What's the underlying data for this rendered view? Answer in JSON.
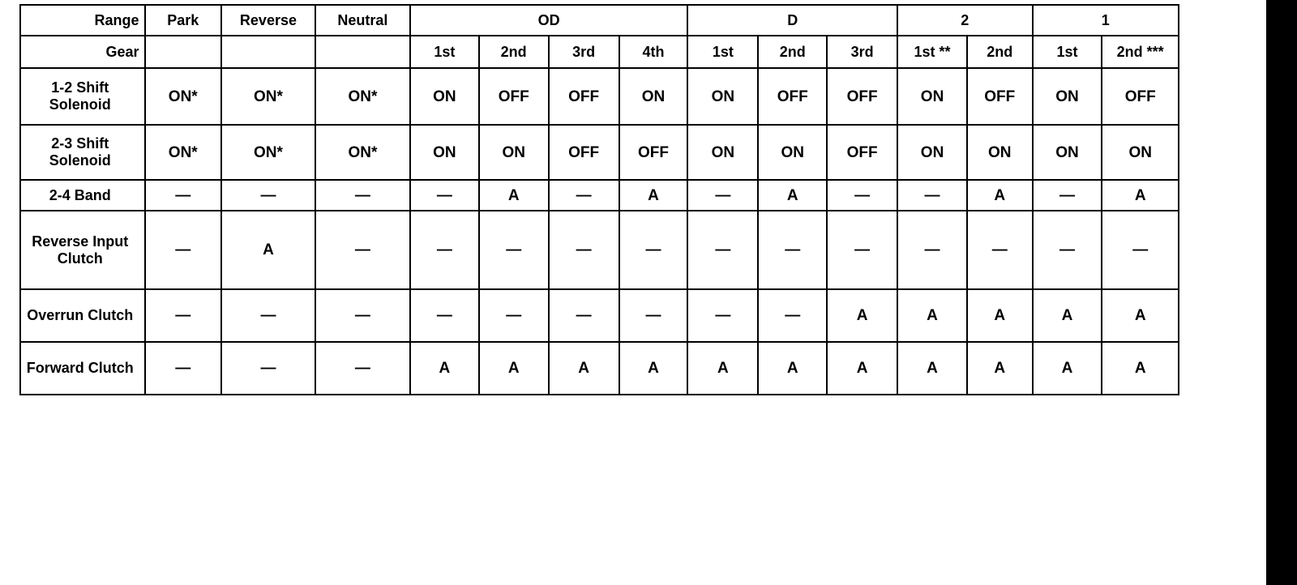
{
  "header": {
    "range_label": "Range",
    "gear_label": "Gear",
    "ranges": [
      {
        "label": "Park",
        "span": 1
      },
      {
        "label": "Reverse",
        "span": 1
      },
      {
        "label": "Neutral",
        "span": 1
      },
      {
        "label": "OD",
        "span": 4
      },
      {
        "label": "D",
        "span": 3
      },
      {
        "label": "2",
        "span": 2
      },
      {
        "label": "1",
        "span": 2
      }
    ],
    "gears": [
      "",
      "",
      "",
      "1st",
      "2nd",
      "3rd",
      "4th",
      "1st",
      "2nd",
      "3rd",
      "1st **",
      "2nd",
      "1st",
      "2nd ***"
    ]
  },
  "rows": [
    {
      "label": "1-2 Shift Solenoid",
      "values": [
        "ON*",
        "ON*",
        "ON*",
        "ON",
        "OFF",
        "OFF",
        "ON",
        "ON",
        "OFF",
        "OFF",
        "ON",
        "OFF",
        "ON",
        "OFF"
      ]
    },
    {
      "label": "2-3 Shift Solenoid",
      "values": [
        "ON*",
        "ON*",
        "ON*",
        "ON",
        "ON",
        "OFF",
        "OFF",
        "ON",
        "ON",
        "OFF",
        "ON",
        "ON",
        "ON",
        "ON"
      ]
    },
    {
      "label": "2-4 Band",
      "values": [
        "—",
        "—",
        "—",
        "—",
        "A",
        "—",
        "A",
        "—",
        "A",
        "—",
        "—",
        "A",
        "—",
        "A"
      ]
    },
    {
      "label": "Reverse Input Clutch",
      "values": [
        "—",
        "A",
        "—",
        "—",
        "—",
        "—",
        "—",
        "—",
        "—",
        "—",
        "—",
        "—",
        "—",
        "—"
      ]
    },
    {
      "label": "Overrun Clutch",
      "values": [
        "—",
        "—",
        "—",
        "—",
        "—",
        "—",
        "—",
        "—",
        "—",
        "A",
        "A",
        "A",
        "A",
        "A"
      ]
    },
    {
      "label": "Forward Clutch",
      "values": [
        "—",
        "—",
        "—",
        "A",
        "A",
        "A",
        "A",
        "A",
        "A",
        "A",
        "A",
        "A",
        "A",
        "A"
      ]
    }
  ]
}
